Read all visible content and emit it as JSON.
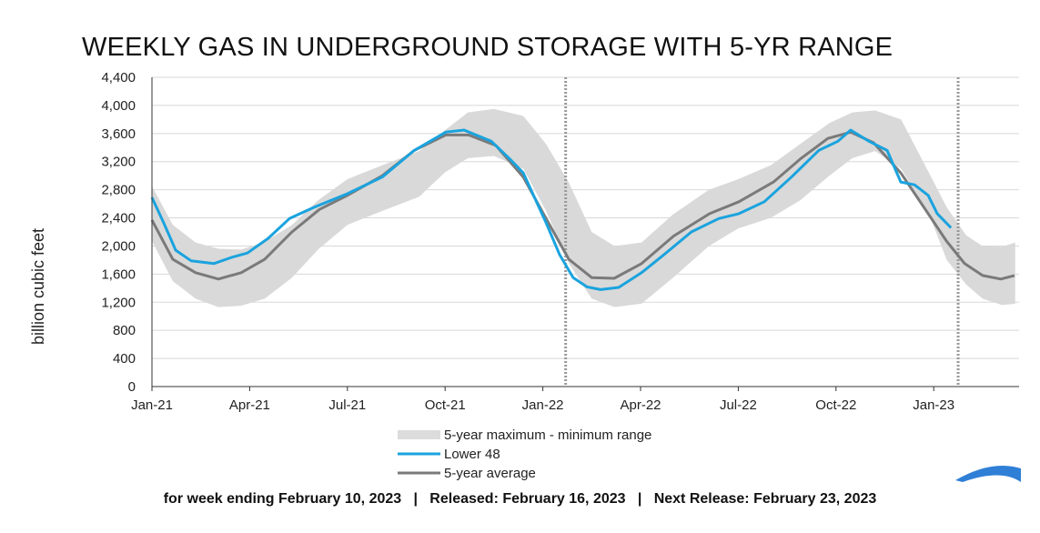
{
  "chart_data": {
    "type": "line",
    "title": "WEEKLY GAS IN UNDERGROUND STORAGE WITH 5-YR RANGE",
    "ylabel": "billion cubic feet",
    "xlabel": "",
    "x_unit": "months since Jan-21",
    "ylim": [
      0,
      4400
    ],
    "yticks": [
      "0",
      "400",
      "800",
      "1,200",
      "1,600",
      "2,000",
      "2,400",
      "2,800",
      "3,200",
      "3,600",
      "4,000",
      "4,400"
    ],
    "xticks": [
      "Jan-21",
      "Apr-21",
      "Jul-21",
      "Oct-21",
      "Jan-22",
      "Apr-22",
      "Jul-22",
      "Oct-22",
      "Jan-23"
    ],
    "xlim": [
      0,
      26.3
    ],
    "grid": true,
    "legend_placement": "bottom-center",
    "vlines": [
      12.7,
      24.75
    ],
    "series": [
      {
        "name": "5-year maximum - minimum range",
        "color": "#d9d9d9",
        "x": [
          0,
          0.64,
          1.34,
          2.04,
          2.74,
          3.46,
          4.3,
          5.1,
          6.0,
          7.07,
          8.2,
          9.0,
          9.7,
          10.5,
          11.4,
          12.1,
          12.8,
          13.5,
          14.2,
          15.03,
          16.0,
          17.1,
          18.0,
          19.0,
          19.9,
          20.8,
          21.5,
          22.2,
          23.0,
          23.9,
          24.4,
          25.0,
          25.5,
          26.1,
          26.5
        ],
        "max": [
          2850,
          2300,
          2050,
          1960,
          1950,
          2060,
          2300,
          2650,
          2950,
          3150,
          3350,
          3650,
          3900,
          3950,
          3850,
          3450,
          2900,
          2200,
          2000,
          2050,
          2450,
          2800,
          2950,
          3150,
          3450,
          3750,
          3900,
          3930,
          3800,
          3000,
          2550,
          2150,
          2000,
          1990,
          2050
        ],
        "min": [
          2070,
          1500,
          1250,
          1130,
          1150,
          1250,
          1550,
          1950,
          2300,
          2500,
          2700,
          3050,
          3250,
          3280,
          3100,
          2500,
          1750,
          1250,
          1130,
          1180,
          1550,
          2000,
          2250,
          2400,
          2650,
          3000,
          3250,
          3350,
          3100,
          2400,
          1800,
          1450,
          1250,
          1160,
          1180
        ]
      },
      {
        "name": "Lower 48",
        "color": "#1aa3de",
        "x": [
          0,
          0.36,
          0.73,
          1.2,
          1.9,
          2.46,
          2.93,
          3.57,
          4.22,
          4.97,
          5.98,
          7.07,
          8.05,
          9.02,
          9.58,
          10.42,
          10.98,
          11.4,
          12.1,
          12.51,
          12.93,
          13.35,
          13.77,
          14.33,
          15.03,
          15.73,
          16.56,
          17.4,
          18.02,
          18.8,
          19.63,
          20.47,
          21.06,
          21.45,
          22.01,
          22.57,
          22.99,
          23.41,
          23.83,
          24.11,
          24.53
        ],
        "values": [
          2690,
          2330,
          1940,
          1790,
          1750,
          1840,
          1900,
          2110,
          2390,
          2550,
          2740,
          2980,
          3360,
          3620,
          3650,
          3490,
          3240,
          3040,
          2330,
          1880,
          1550,
          1420,
          1380,
          1410,
          1620,
          1880,
          2200,
          2390,
          2460,
          2630,
          2980,
          3360,
          3490,
          3650,
          3490,
          3360,
          2910,
          2870,
          2720,
          2460,
          2260
        ]
      },
      {
        "name": "5-year average",
        "color": "#7a7a7a",
        "x": [
          0,
          0.64,
          1.34,
          2.04,
          2.74,
          3.46,
          4.3,
          5.14,
          6.0,
          7.07,
          8.05,
          9.02,
          9.72,
          10.56,
          11.4,
          12.1,
          12.8,
          13.5,
          14.19,
          15.03,
          16.01,
          17.12,
          18.02,
          19.08,
          19.91,
          20.75,
          21.45,
          22.15,
          22.99,
          23.83,
          24.39,
          24.95,
          25.5,
          26.06,
          26.48
        ],
        "values": [
          2370,
          1810,
          1620,
          1530,
          1620,
          1810,
          2200,
          2520,
          2720,
          3000,
          3360,
          3580,
          3580,
          3430,
          2980,
          2390,
          1810,
          1550,
          1540,
          1750,
          2140,
          2460,
          2630,
          2910,
          3240,
          3530,
          3620,
          3470,
          3040,
          2460,
          2070,
          1750,
          1580,
          1530,
          1580
        ]
      }
    ]
  },
  "footer": "for week ending February 10, 2023   |   Released: February 16, 2023   |   Next Release: February 23, 2023"
}
